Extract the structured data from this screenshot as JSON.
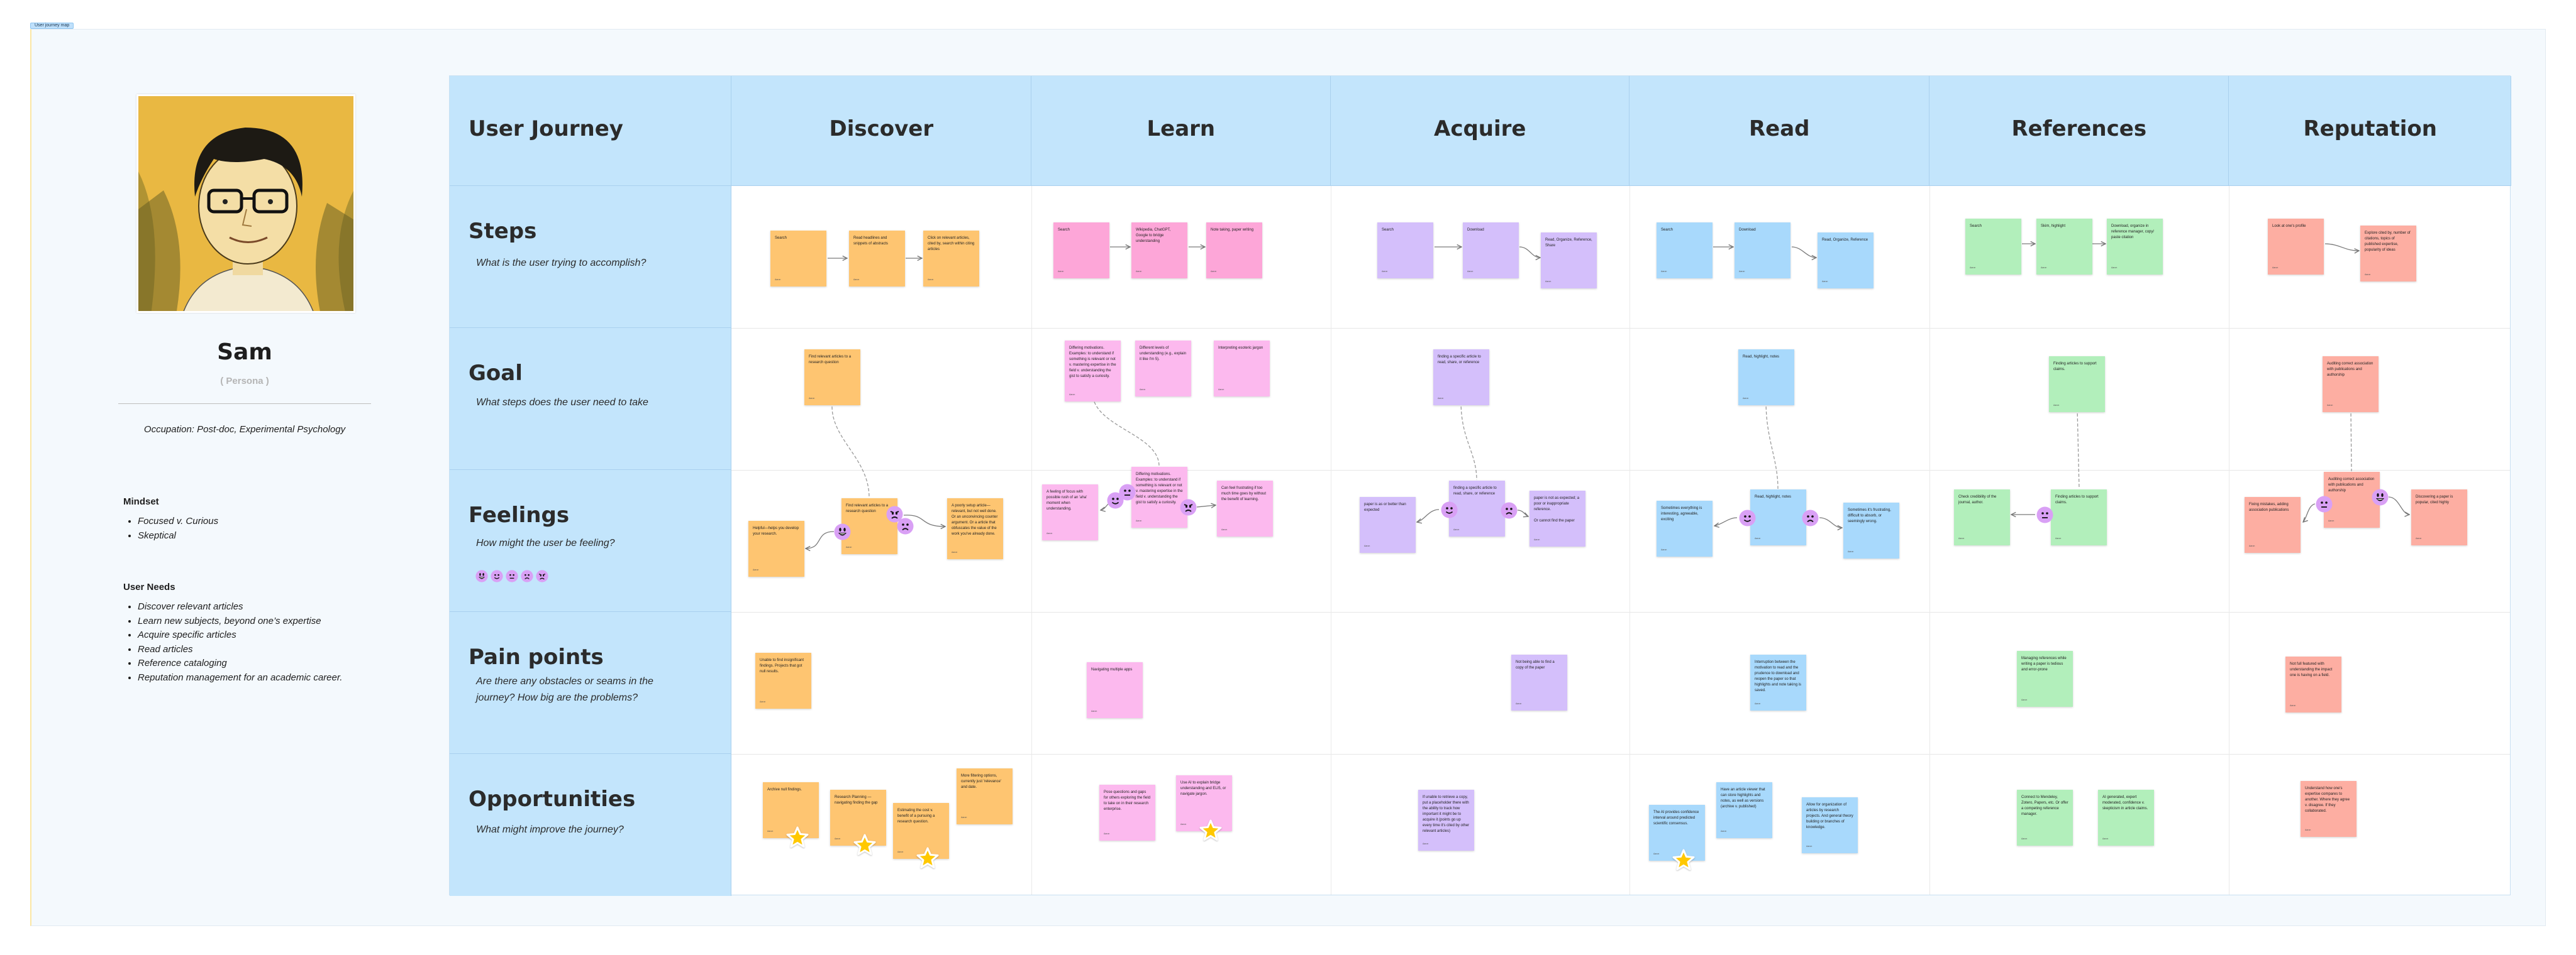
{
  "frame_label": "User journey map",
  "persona": {
    "name": "Sam",
    "role": "( Persona )",
    "occupation": "Occupation: Post-doc, Experimental Psychology",
    "mindset_title": "Mindset",
    "mindset": [
      "Focused v. Curious",
      "Skeptical"
    ],
    "needs_title": "User Needs",
    "needs": [
      "Discover relevant articles",
      "Learn new subjects, beyond one’s expertise",
      "Acquire specific articles",
      "Read articles",
      "Reference cataloging",
      "Reputation management for an academic career."
    ]
  },
  "header": {
    "corner": "User Journey"
  },
  "rows": [
    {
      "title": "Steps",
      "subtitle": "What is the user trying to accomplish?"
    },
    {
      "title": "Goal",
      "subtitle": "What steps does the user need to take"
    },
    {
      "title": "Feelings",
      "subtitle": "How might the user be feeling?"
    },
    {
      "title": "Pain points",
      "subtitle": "Are there any obstacles or seams in the journey? How big are the problems?"
    },
    {
      "title": "Opportunities",
      "subtitle": "What might improve the journey?"
    }
  ],
  "feelings_legend": [
    "grinning-face",
    "smiling-face",
    "neutral-face",
    "frowning-face",
    "angry-face"
  ],
  "note_author": "Aaron",
  "colors": {
    "header": "#c3e5fc",
    "emoji": "#d9a0f5",
    "star": "#ffc800"
  },
  "columns": [
    {
      "name": "Discover",
      "color": "#fec571",
      "steps": [
        "Search",
        "Read headlines and snippets of abstracts",
        "Click on relevant articles, cited by, search within citing articles"
      ],
      "goal": [
        "Find relevant articles to a research question"
      ],
      "feelings": [
        "Find relevant articles to a research question",
        "Helpful—helps you develop your research.",
        "A poorly setup article—relevant, but not well done. Or an unconvincing counter argument. Or a article that obfuscates the value of the work you've already done."
      ],
      "feeling_faces": [
        "grinning-face",
        "angry-face",
        "frowning-face"
      ],
      "pain_points": [
        "Unable to find insignificant findings. Projects that got null results."
      ],
      "opportunities": [
        "Archive null findings.",
        "Research Planning — navigating finding the gap",
        "Estimating the cost v. benefit of a pursuing a research question.",
        "More filtering options, currently just 'relevance' and date."
      ],
      "starred": [
        0,
        1,
        2
      ]
    },
    {
      "name": "Learn",
      "color": "#fcb9ee",
      "steps": [
        "Search",
        "Wikipedia, ChatGPT, Google to bridge understanding",
        "Note taking, paper writing"
      ],
      "goal": [
        "Differing motivations. Examples: to understand if something is relevant or not v. mastering expertise in the field v. understanding the gist to satisfy a curiosity.",
        "Different levels of understanding (e.g., explain it like I'm 5).",
        "Interpreting esoteric jargon"
      ],
      "feelings": [
        "Differing motivations. Examples: to understand if something is relevant or not v. mastering expertise in the field v. understanding the gist to satisfy a curiosity.",
        "A feeling of focus with possible rush of an 'aha' moment when understanding.",
        "Can feel frustrating if too much time goes by without the benefit of learning."
      ],
      "feeling_faces": [
        "neutral-face",
        "smiling-face",
        "angry-face"
      ],
      "pain_points": [
        "Navigating multiple apps"
      ],
      "opportunities": [
        "Pose questions and gaps for others exploring the field to take on in their research enterprise.",
        "Use AI to explain bridge understanding and ELI5, or navigate jargon."
      ],
      "starred": [
        1
      ]
    },
    {
      "name": "Acquire",
      "color": "#d4bffb",
      "steps": [
        "Search",
        "Download",
        "Read, Organize, Reference, Share"
      ],
      "goal": [
        "finding a specific article to read, share, or reference"
      ],
      "feelings": [
        "finding a specific article to read, share, or reference",
        "paper is as or better than expected",
        "paper is not as expected; a poor or inappropriate reference.\n\nOr cannot find the paper"
      ],
      "feeling_faces": [
        "smiling-face",
        "frowning-face"
      ],
      "pain_points": [
        "Not being able to find a copy of the paper"
      ],
      "opportunities": [
        "If unable to retrieve a copy, put a placeholder there with the ability to track how important it might be to acquire it (points go up every time it's cited by other relevant articles)"
      ],
      "starred": []
    },
    {
      "name": "Read",
      "color": "#a8d9fc",
      "steps": [
        "Search",
        "Download",
        "Read, Organize, Reference"
      ],
      "goal": [
        "Read, highlight, notes"
      ],
      "feelings": [
        "Read, highlight, notes",
        "Sometimes everything is interesting, agreeable, exciting",
        "Sometimes it's frustrating, difficult to absorb, or seemingly wrong."
      ],
      "feeling_faces": [
        "smiling-face",
        "frowning-face"
      ],
      "pain_points": [
        "Interruption between the motivation to read and the prudence to download and reopen the paper so that highlights and note taking is saved."
      ],
      "opportunities": [
        "The AI provides confidence interval around predicted scientific consensus.",
        "Have an article viewer that can store highlights and notes, as well as versions (archive v. published)",
        "Allow for organization of articles by research projects. And general theory building or branches of knowledge."
      ],
      "starred": [
        0
      ]
    },
    {
      "name": "References",
      "color": "#b2efbb",
      "steps": [
        "Search",
        "Skim, highlight",
        "Download, organize in reference manager, copy/ paste citation"
      ],
      "goal": [
        "Finding articles to support claims."
      ],
      "feelings": [
        "Finding articles to support claims.",
        "Check credibility of the journal, author."
      ],
      "feeling_faces": [
        "neutral-face"
      ],
      "pain_points": [
        "Managing references while writing a paper is tedious and error-prone"
      ],
      "opportunities": [
        "Connect to Mendeley, Zotero, Papers, etc. Or offer a competing reference manager.",
        "AI generated, expert moderated, confidence v. skepticism in article claims."
      ],
      "starred": []
    },
    {
      "name": "Reputation",
      "color": "#fdaea2",
      "steps": [
        "Look at one's profile",
        "Explore cited by, number of citations, topics of published expertise, popularity of ideas"
      ],
      "goal": [
        "Auditing correct association with publications and authorship"
      ],
      "feelings": [
        "Auditing correct association with publications and authorship",
        "Fixing mistakes, adding association publications",
        "Discovering a paper is popular, cited highly"
      ],
      "feeling_faces": [
        "neutral-face",
        "grinning-face"
      ],
      "pain_points": [
        "Not full featured with understanding the impact one is having on a field."
      ],
      "opportunities": [
        "Understand how one's expertise compares to another. Where they agree v. disagree. If they collaborated."
      ],
      "starred": []
    }
  ]
}
